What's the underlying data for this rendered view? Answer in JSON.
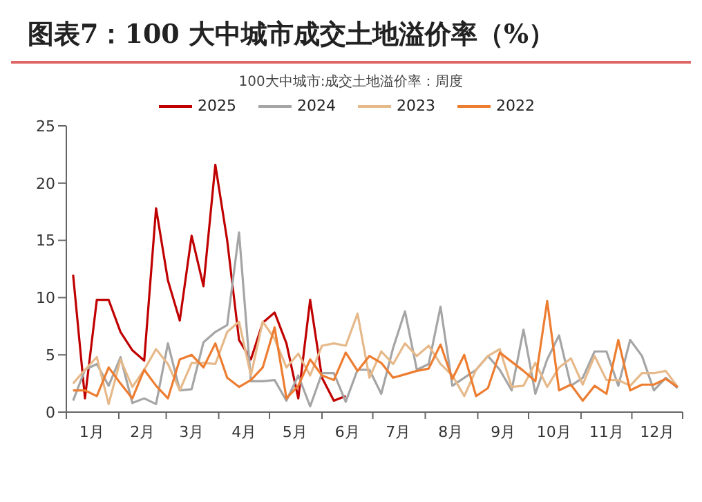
{
  "chart_data": {
    "type": "line",
    "title": "图表7：100 大中城市成交土地溢价率（%）",
    "subtitle": "100大中城市:成交土地溢价率：周度",
    "x": [
      "--01-05",
      "--01-12",
      "--01-19",
      "--01-26",
      "--02-02",
      "--02-09",
      "--02-16",
      "--02-23",
      "--03-02",
      "--03-09",
      "--03-16",
      "--03-23",
      "--03-30",
      "--04-06",
      "--04-13",
      "--04-20",
      "--04-27",
      "--05-04",
      "--05-11",
      "--05-18",
      "--05-25",
      "--06-01",
      "--06-08",
      "--06-15",
      "--06-22",
      "--06-29",
      "--07-06",
      "--07-13",
      "--07-20",
      "--07-27",
      "--08-03",
      "--08-10",
      "--08-17",
      "--08-24",
      "--08-31",
      "--09-07",
      "--09-14",
      "--09-21",
      "--09-28",
      "--10-05",
      "--10-12",
      "--10-19",
      "--10-26",
      "--11-02",
      "--11-09",
      "--11-16",
      "--11-23",
      "--11-30",
      "--12-07",
      "--12-14",
      "--12-21",
      "--12-28"
    ],
    "series": [
      {
        "name": "2025",
        "color": "#c00000",
        "x": [
          "--01-05",
          "--01-12",
          "--01-19",
          "--01-26",
          "--02-02",
          "--02-09",
          "--02-16",
          "--02-23",
          "--03-02",
          "--03-09",
          "--03-16",
          "--03-23",
          "--03-30",
          "--04-06",
          "--04-13",
          "--04-20",
          "--04-27",
          "--05-04",
          "--05-11",
          "--05-18",
          "--05-25",
          "--06-01",
          "--06-08",
          "--06-15"
        ],
        "values": [
          12,
          1.2,
          9.8,
          9.8,
          7,
          5.4,
          4.5,
          17.8,
          11.5,
          8,
          15.4,
          11,
          21.6,
          15,
          6.3,
          4.6,
          7.8,
          8.7,
          6,
          1.2,
          9.8,
          3,
          1,
          1.4
        ]
      },
      {
        "name": "2024",
        "color": "#a5a5a5",
        "values": [
          1.0,
          3.7,
          4.2,
          2.3,
          4.8,
          0.8,
          1.2,
          0.7,
          6.0,
          1.9,
          2.0,
          6.1,
          7.0,
          7.6,
          15.7,
          2.7,
          2.7,
          2.8,
          1.0,
          3.2,
          0.5,
          3.4,
          3.4,
          0.9,
          3.7,
          3.7,
          1.6,
          5.6,
          8.8,
          3.7,
          4.2,
          9.2,
          2.3,
          3.0,
          3.7,
          4.9,
          3.7,
          1.9,
          7.2,
          1.6,
          4.6,
          6.7,
          2.3,
          3.0,
          5.3,
          5.3,
          2.3,
          6.3,
          4.9,
          1.9,
          3.0,
          2.1
        ]
      },
      {
        "name": "2023",
        "color": "#e6b98a",
        "values": [
          2.5,
          3.7,
          4.8,
          0.7,
          4.6,
          2.2,
          3.7,
          5.5,
          4.2,
          1.9,
          4.3,
          4.3,
          4.2,
          7,
          7.9,
          3.2,
          7.9,
          6.4,
          3.9,
          5.1,
          3.2,
          5.8,
          6.0,
          5.8,
          8.6,
          3.0,
          5.3,
          4.2,
          6.0,
          4.9,
          5.8,
          4.2,
          3.2,
          1.4,
          3.7,
          4.9,
          5.5,
          2.2,
          2.3,
          4.3,
          2.2,
          3.9,
          4.7,
          2.4,
          4.9,
          2.8,
          2.8,
          2.3,
          3.4,
          3.4,
          3.6,
          2.2
        ]
      },
      {
        "name": "2022",
        "color": "#ed7d31",
        "values": [
          1.9,
          1.9,
          1.4,
          3.9,
          2.5,
          1.2,
          3.7,
          2.3,
          1.2,
          4.6,
          5.0,
          3.9,
          6.0,
          3.0,
          2.2,
          2.8,
          3.9,
          7.4,
          1.2,
          2.3,
          4.6,
          3.2,
          2.8,
          5.2,
          3.6,
          4.9,
          4.3,
          3.0,
          3.3,
          3.6,
          3.8,
          5.9,
          2.9,
          5.0,
          1.4,
          2.1,
          5.2,
          4.4,
          3.6,
          2.7,
          9.7,
          1.9,
          2.4,
          1.0,
          2.3,
          1.6,
          6.3,
          1.9,
          2.4,
          2.4,
          2.9,
          2.2
        ]
      }
    ],
    "xlim": [
      "--01-01",
      "--12-31"
    ],
    "xticks": [
      {
        "value": "--01-01",
        "label": null
      },
      {
        "value": "--01-16",
        "label": "1月"
      },
      {
        "value": "--02-01",
        "label": null
      },
      {
        "value": "--02-15",
        "label": "2月"
      },
      {
        "value": "--03-01",
        "label": null
      },
      {
        "value": "--03-16",
        "label": "3月"
      },
      {
        "value": "--04-01",
        "label": null
      },
      {
        "value": "--04-16",
        "label": "4月"
      },
      {
        "value": "--05-01",
        "label": null
      },
      {
        "value": "--05-16",
        "label": "5月"
      },
      {
        "value": "--06-01",
        "label": null
      },
      {
        "value": "--06-16",
        "label": "6月"
      },
      {
        "value": "--07-01",
        "label": null
      },
      {
        "value": "--07-16",
        "label": "7月"
      },
      {
        "value": "--08-01",
        "label": null
      },
      {
        "value": "--08-16",
        "label": "8月"
      },
      {
        "value": "--09-01",
        "label": null
      },
      {
        "value": "--09-16",
        "label": "9月"
      },
      {
        "value": "--10-01",
        "label": null
      },
      {
        "value": "--10-16",
        "label": "10月"
      },
      {
        "value": "--11-01",
        "label": null
      },
      {
        "value": "--11-16",
        "label": "11月"
      },
      {
        "value": "--12-01",
        "label": null
      },
      {
        "value": "--12-16",
        "label": "12月"
      },
      {
        "value": "--12-31",
        "label": null
      }
    ],
    "ylim": [
      0,
      25
    ],
    "yticks": [
      0,
      5,
      10,
      15,
      20,
      25
    ],
    "legend": "top",
    "grid": false,
    "marker": "none",
    "line_style": "solid"
  }
}
